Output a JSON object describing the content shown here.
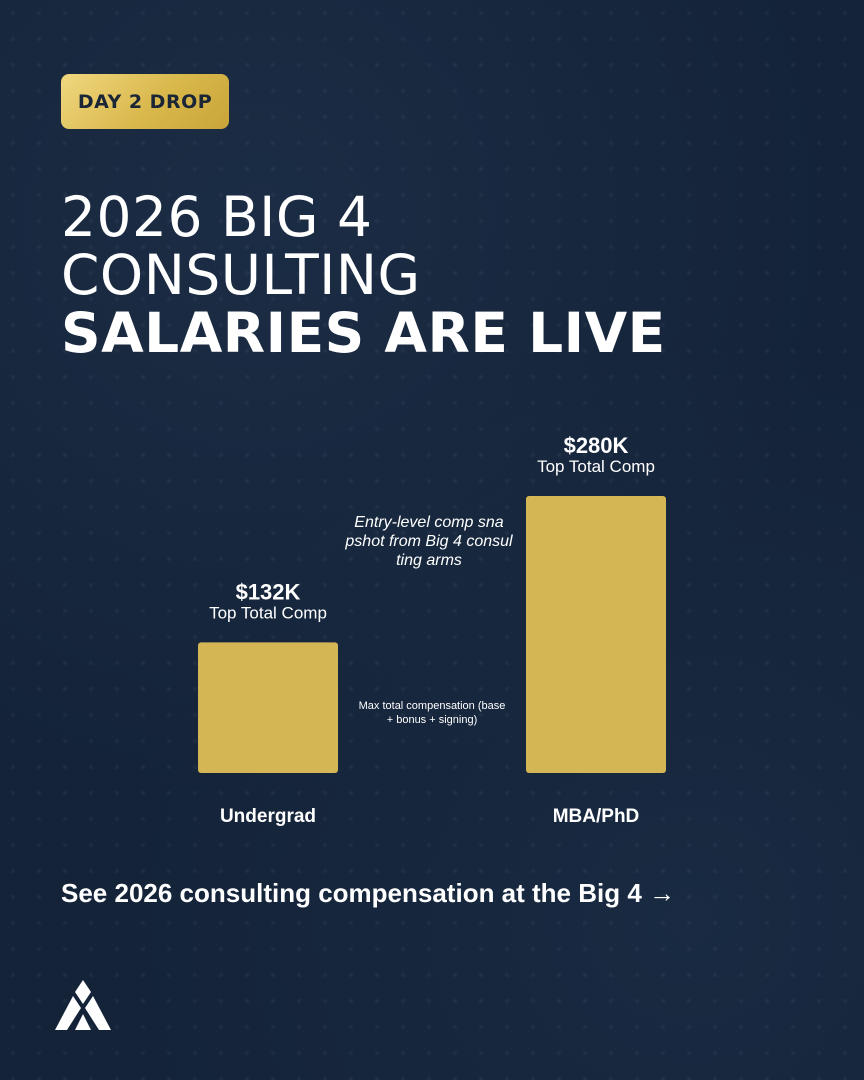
{
  "badge": "DAY 2 DROP",
  "headline": {
    "line1": "2026 BIG 4",
    "line2": "CONSULTING",
    "line3": "SALARIES ARE LIVE"
  },
  "chart_data": {
    "type": "bar",
    "categories": [
      "Undergrad",
      "MBA/PhD"
    ],
    "values": [
      132,
      280
    ],
    "value_labels": [
      "$132K",
      "$280K"
    ],
    "sub_labels": [
      "Top Total Comp",
      "Top Total Comp"
    ],
    "annotations": [
      "Entry-level comp snapshot from Big 4 consulting arms",
      "Max total compensation (base + bonus + signing)"
    ],
    "unit": "$K",
    "title": "",
    "xlabel": "",
    "ylabel": "",
    "ylim": [
      0,
      280
    ],
    "grid": false,
    "bar_color": "#d4b654"
  },
  "cta": "See 2026 consulting compensation at the Big 4 →",
  "colors": {
    "background": "#142338",
    "accent_gold": "#d4b654",
    "text": "#ffffff"
  },
  "logo_icon": "brand-mark-icon"
}
